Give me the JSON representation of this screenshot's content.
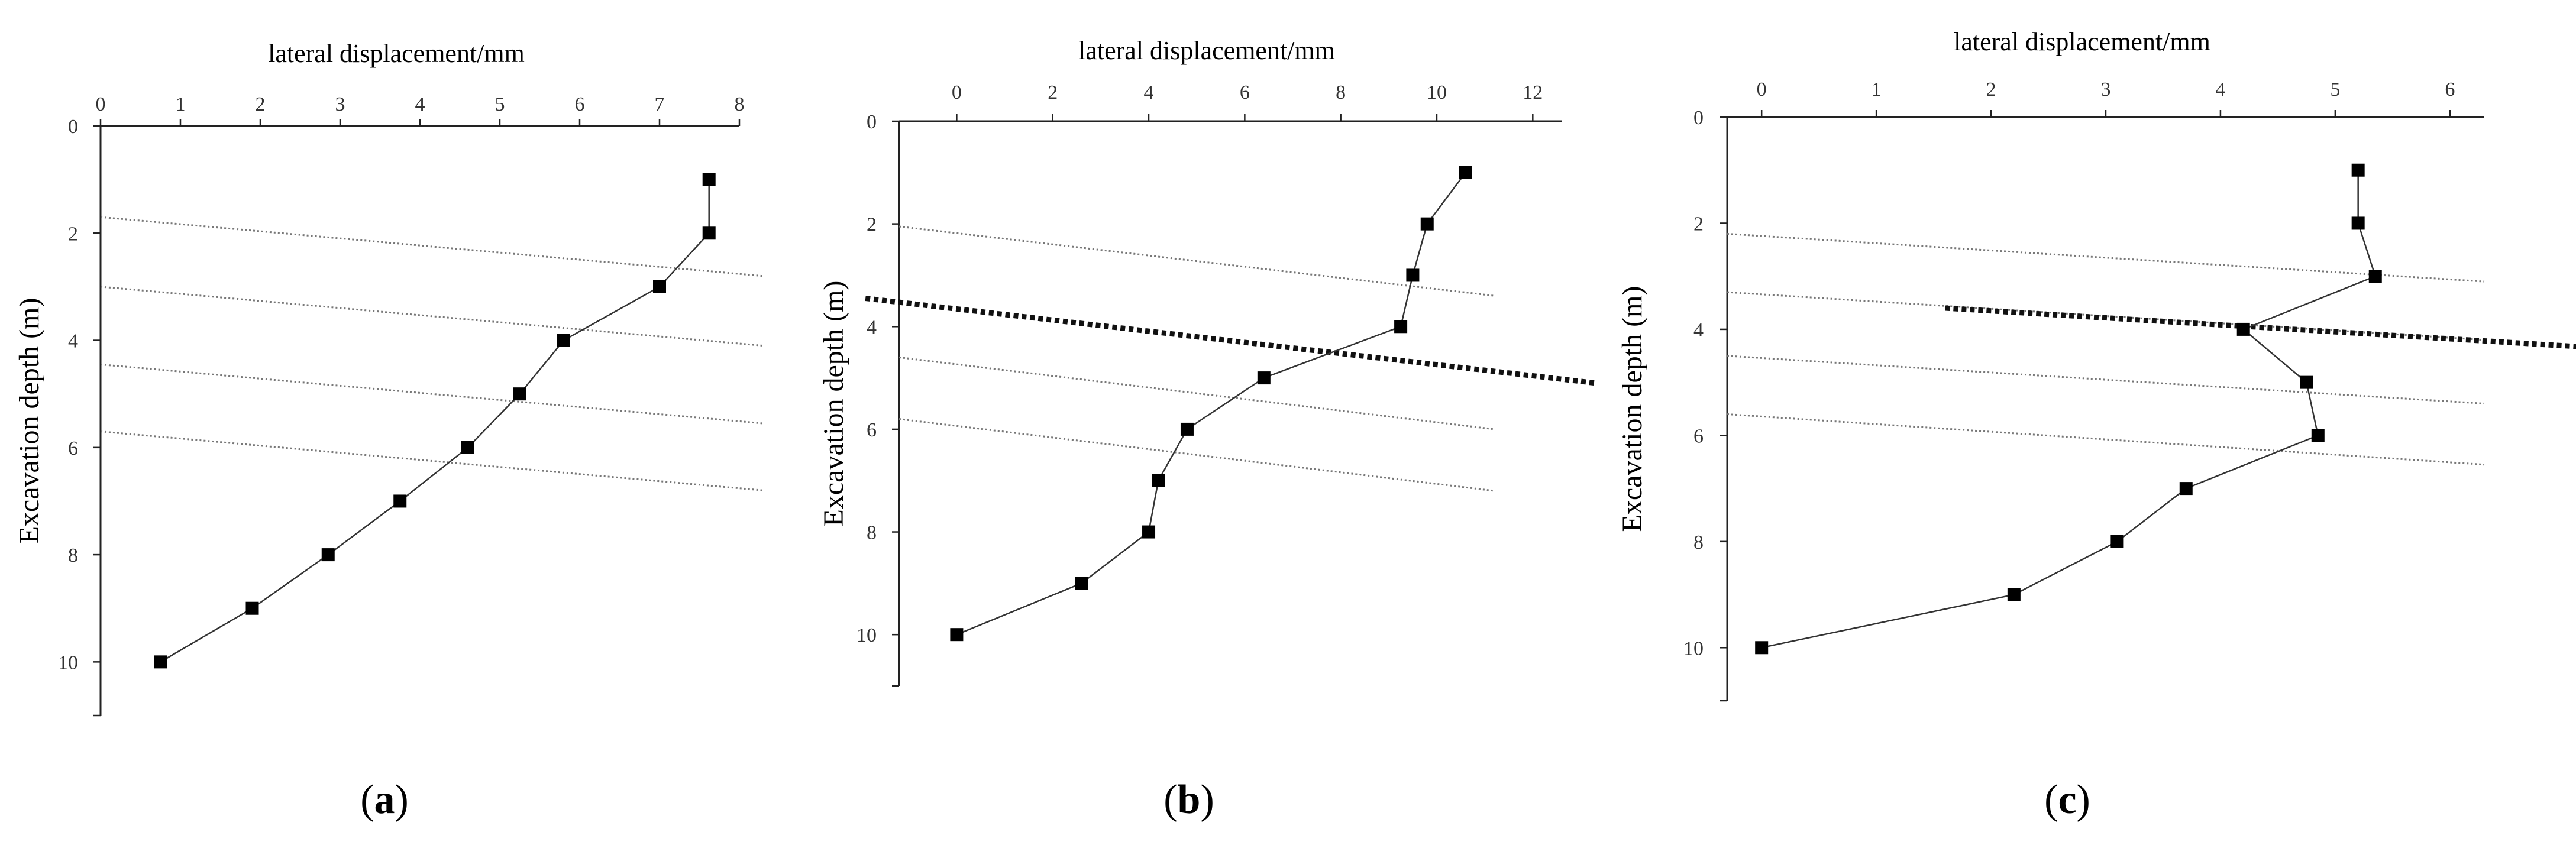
{
  "chart_data": [
    {
      "type": "line",
      "panel_label": "a",
      "title": "",
      "xlabel": "lateral displacement/mm",
      "ylabel": "Excavation depth (m)",
      "xlim": [
        0,
        8
      ],
      "ylim": [
        0,
        11
      ],
      "x_ticks": [
        "0",
        "1",
        "2",
        "3",
        "4",
        "5",
        "6",
        "7",
        "8"
      ],
      "y_ticks": [
        "0",
        "2",
        "4",
        "6",
        "8",
        "10"
      ],
      "series": [
        {
          "name": "lateral displacement",
          "x": [
            7.62,
            7.62,
            7.0,
            5.8,
            5.25,
            4.6,
            3.75,
            2.85,
            1.9,
            0.75
          ],
          "y": [
            1,
            2,
            3,
            4,
            5,
            6,
            7,
            8,
            9,
            10
          ]
        }
      ],
      "reference_lines": [
        {
          "style": "dotted",
          "x": [
            0,
            8.3
          ],
          "y": [
            1.7,
            2.8
          ]
        },
        {
          "style": "dotted",
          "x": [
            0,
            8.3
          ],
          "y": [
            3.0,
            4.1
          ]
        },
        {
          "style": "dotted",
          "x": [
            0,
            8.3
          ],
          "y": [
            4.45,
            5.55
          ]
        },
        {
          "style": "dotted",
          "x": [
            0,
            8.3
          ],
          "y": [
            5.7,
            6.8
          ]
        }
      ]
    },
    {
      "type": "line",
      "panel_label": "b",
      "title": "",
      "xlabel": "lateral displacement/mm",
      "ylabel": "Excavation depth (m)",
      "xlim": [
        -1.2,
        12.6
      ],
      "ylim": [
        0,
        11
      ],
      "x_ticks": [
        "0",
        "2",
        "4",
        "6",
        "8",
        "10",
        "12"
      ],
      "y_ticks": [
        "0",
        "2",
        "4",
        "6",
        "8",
        "10"
      ],
      "series": [
        {
          "name": "lateral displacement",
          "x": [
            10.6,
            9.8,
            9.5,
            9.25,
            6.4,
            4.8,
            4.2,
            4.0,
            2.6,
            0.0
          ],
          "y": [
            1,
            2,
            3,
            4,
            5,
            6,
            7,
            8,
            9,
            10
          ]
        }
      ],
      "reference_lines": [
        {
          "style": "dotted",
          "x": [
            -1.2,
            11.2
          ],
          "y": [
            2.05,
            3.4
          ]
        },
        {
          "style": "heavy-dotted",
          "x": [
            -1.9,
            13.3
          ],
          "y": [
            3.45,
            5.1
          ]
        },
        {
          "style": "dotted",
          "x": [
            -1.2,
            11.2
          ],
          "y": [
            4.6,
            6.0
          ]
        },
        {
          "style": "dotted",
          "x": [
            -1.2,
            11.2
          ],
          "y": [
            5.8,
            7.2
          ]
        }
      ]
    },
    {
      "type": "line",
      "panel_label": "c",
      "title": "",
      "xlabel": "lateral displacement/mm",
      "ylabel": "Excavation depth (m)",
      "xlim": [
        -0.3,
        6.3
      ],
      "ylim": [
        0,
        11
      ],
      "x_ticks": [
        "0",
        "1",
        "2",
        "3",
        "4",
        "5",
        "6"
      ],
      "y_ticks": [
        "0",
        "2",
        "4",
        "6",
        "8",
        "10"
      ],
      "series": [
        {
          "name": "lateral displacement",
          "x": [
            5.2,
            5.2,
            5.35,
            4.2,
            4.75,
            4.85,
            3.7,
            3.1,
            2.2,
            0.0
          ],
          "y": [
            1,
            2,
            3,
            4,
            5,
            6,
            7,
            8,
            9,
            10
          ]
        }
      ],
      "reference_lines": [
        {
          "style": "dotted",
          "x": [
            -0.3,
            6.3
          ],
          "y": [
            2.2,
            3.1
          ]
        },
        {
          "style": "dotted",
          "x": [
            -0.3,
            6.3
          ],
          "y": [
            3.3,
            4.2
          ]
        },
        {
          "style": "heavy-dotted",
          "x": [
            1.6,
            7.3
          ],
          "y": [
            3.6,
            4.35
          ]
        },
        {
          "style": "dotted",
          "x": [
            -0.3,
            6.3
          ],
          "y": [
            4.5,
            5.4
          ]
        },
        {
          "style": "dotted",
          "x": [
            -0.3,
            6.3
          ],
          "y": [
            5.6,
            6.55
          ]
        }
      ]
    }
  ],
  "paren_open": "(",
  "paren_close": ")"
}
